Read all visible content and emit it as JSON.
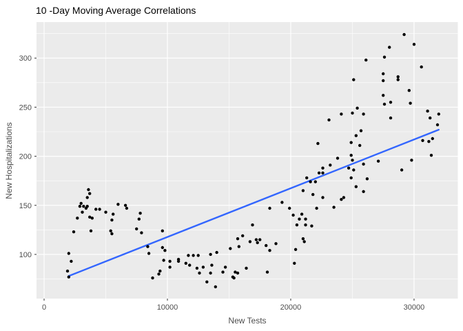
{
  "chart_data": {
    "type": "scatter",
    "title": "10 -Day Moving Average Correlations",
    "xlabel": "New Tests",
    "ylabel": "New Hospitalizations",
    "x_ticks": [
      0,
      10000,
      20000,
      30000
    ],
    "x_minor_ticks": [
      5000,
      15000,
      25000
    ],
    "y_ticks": [
      100,
      150,
      200,
      250,
      300
    ],
    "y_minor_ticks": [
      75,
      125,
      175,
      225,
      275,
      325
    ],
    "xlim": [
      -615,
      33550
    ],
    "ylim": [
      55,
      336.7
    ],
    "grid": "white on grey panel, major+minor",
    "legend_position": "none",
    "trendline": {
      "kind": "linear",
      "x1": 2000,
      "y1": 78,
      "x2": 32000,
      "y2": 227
    },
    "colors": {
      "page_background": "#FFFFFF",
      "panel": "#EBEBEB",
      "gridline": "#FFFFFF",
      "point": "#000000",
      "trend_line": "#3366FF",
      "axis_text": "#4D4D4D",
      "tick_mark": "#333333",
      "title_text": "#000000"
    },
    "points": [
      [
        2000,
        101
      ],
      [
        2200,
        93
      ],
      [
        1900,
        83
      ],
      [
        2000,
        77
      ],
      [
        2400,
        123
      ],
      [
        2700,
        137
      ],
      [
        2900,
        149
      ],
      [
        3000,
        152
      ],
      [
        3100,
        143
      ],
      [
        3200,
        149
      ],
      [
        3500,
        149
      ],
      [
        3400,
        147
      ],
      [
        3500,
        158
      ],
      [
        3600,
        166
      ],
      [
        3700,
        162
      ],
      [
        3700,
        138
      ],
      [
        3900,
        137
      ],
      [
        3800,
        124
      ],
      [
        4200,
        146
      ],
      [
        4500,
        146
      ],
      [
        5000,
        143
      ],
      [
        5600,
        141
      ],
      [
        5500,
        135
      ],
      [
        5400,
        124
      ],
      [
        5500,
        121
      ],
      [
        6000,
        151
      ],
      [
        6600,
        150
      ],
      [
        6700,
        147
      ],
      [
        7800,
        142
      ],
      [
        7700,
        136
      ],
      [
        7500,
        126
      ],
      [
        7900,
        122
      ],
      [
        8400,
        108
      ],
      [
        8500,
        101
      ],
      [
        8800,
        76
      ],
      [
        9300,
        80
      ],
      [
        9400,
        83
      ],
      [
        9600,
        107
      ],
      [
        9800,
        104
      ],
      [
        9700,
        94
      ],
      [
        10200,
        93
      ],
      [
        10200,
        87
      ],
      [
        9600,
        124
      ],
      [
        10900,
        95
      ],
      [
        10900,
        93
      ],
      [
        11500,
        91
      ],
      [
        11800,
        89
      ],
      [
        11700,
        99
      ],
      [
        12100,
        99
      ],
      [
        12500,
        99
      ],
      [
        12400,
        86
      ],
      [
        12900,
        87
      ],
      [
        12600,
        81
      ],
      [
        13500,
        100
      ],
      [
        14000,
        102
      ],
      [
        13600,
        89
      ],
      [
        13500,
        81
      ],
      [
        13200,
        72
      ],
      [
        13900,
        67
      ],
      [
        14500,
        82
      ],
      [
        14700,
        87
      ],
      [
        15100,
        106
      ],
      [
        15800,
        108
      ],
      [
        15300,
        77
      ],
      [
        15400,
        76
      ],
      [
        15500,
        82
      ],
      [
        15700,
        81
      ],
      [
        16400,
        86
      ],
      [
        18100,
        82
      ],
      [
        16100,
        119
      ],
      [
        15700,
        116
      ],
      [
        16900,
        130
      ],
      [
        17200,
        115
      ],
      [
        17500,
        115
      ],
      [
        17300,
        112
      ],
      [
        16700,
        113
      ],
      [
        18300,
        147
      ],
      [
        18300,
        104
      ],
      [
        18800,
        111
      ],
      [
        18000,
        109
      ],
      [
        19300,
        153
      ],
      [
        19900,
        147
      ],
      [
        20200,
        140
      ],
      [
        20900,
        141
      ],
      [
        20700,
        136
      ],
      [
        21200,
        136
      ],
      [
        20500,
        130
      ],
      [
        21200,
        130
      ],
      [
        21700,
        129
      ],
      [
        21000,
        116
      ],
      [
        21100,
        113
      ],
      [
        20400,
        105
      ],
      [
        20300,
        91
      ],
      [
        21000,
        165
      ],
      [
        21800,
        161
      ],
      [
        21300,
        178
      ],
      [
        21600,
        174
      ],
      [
        22000,
        174
      ],
      [
        22100,
        147
      ],
      [
        23500,
        148
      ],
      [
        22600,
        158
      ],
      [
        24100,
        156
      ],
      [
        22300,
        183
      ],
      [
        22600,
        183
      ],
      [
        22600,
        188
      ],
      [
        23200,
        191
      ],
      [
        22200,
        213
      ],
      [
        23100,
        237
      ],
      [
        23800,
        198
      ],
      [
        24100,
        243
      ],
      [
        25000,
        244
      ],
      [
        25400,
        249
      ],
      [
        25900,
        243
      ],
      [
        26100,
        298
      ],
      [
        25100,
        278
      ],
      [
        25700,
        226
      ],
      [
        25300,
        221
      ],
      [
        24900,
        214
      ],
      [
        25600,
        211
      ],
      [
        24900,
        201
      ],
      [
        25000,
        196
      ],
      [
        25900,
        192
      ],
      [
        27100,
        195
      ],
      [
        24700,
        188
      ],
      [
        25100,
        186
      ],
      [
        24900,
        178
      ],
      [
        26200,
        177
      ],
      [
        25300,
        169
      ],
      [
        25900,
        164
      ],
      [
        24300,
        158
      ],
      [
        29000,
        186
      ],
      [
        29800,
        196
      ],
      [
        30700,
        216
      ],
      [
        31200,
        215
      ],
      [
        31500,
        218
      ],
      [
        31400,
        201
      ],
      [
        31100,
        246
      ],
      [
        31300,
        239
      ],
      [
        32000,
        243
      ],
      [
        31900,
        232
      ],
      [
        27600,
        253
      ],
      [
        28100,
        255
      ],
      [
        28100,
        239
      ],
      [
        29700,
        254
      ],
      [
        29600,
        267
      ],
      [
        27500,
        262
      ],
      [
        27500,
        284
      ],
      [
        27500,
        277
      ],
      [
        28700,
        281
      ],
      [
        28700,
        278
      ],
      [
        27600,
        301
      ],
      [
        28000,
        311
      ],
      [
        30000,
        314
      ],
      [
        29200,
        324
      ],
      [
        30600,
        291
      ]
    ]
  }
}
